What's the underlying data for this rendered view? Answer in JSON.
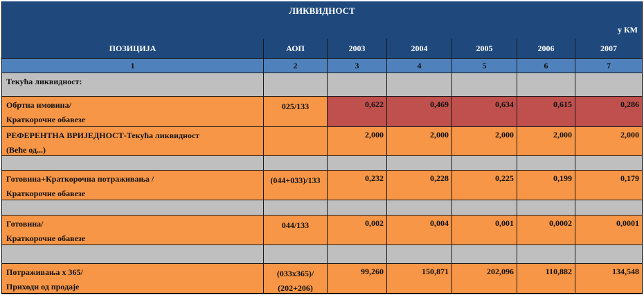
{
  "title": "ЛИКВИДНОСТ",
  "unit": "у КМ",
  "header": [
    "ПОЗИЦИЈА",
    "АОП",
    "2003",
    "2004",
    "2005",
    "2006",
    "2007"
  ],
  "col_numbers": [
    "1",
    "2",
    "3",
    "4",
    "5",
    "6",
    "7"
  ],
  "rows": [
    {
      "label1": "Текућа ликвидност:",
      "label2": "",
      "aop": "",
      "values": [
        "",
        "",
        "",
        "",
        ""
      ]
    },
    {
      "label1": "Обртна имовина/",
      "label2": "Краткорочне обавезе",
      "aop": "025/133",
      "values": [
        "0,622",
        "0,469",
        "0,634",
        "0,615",
        "0,286"
      ]
    },
    {
      "label1": "РЕФЕРЕНТНА ВРИЈЕДНОСТ-Текућа  ликвидност",
      "label2": "(Веће од...)",
      "aop": "",
      "values": [
        "2,000",
        "2,000",
        "2,000",
        "2,000",
        "2,000"
      ]
    },
    {
      "label1": "",
      "label2": "",
      "aop": "",
      "values": [
        "",
        "",
        "",
        "",
        ""
      ]
    },
    {
      "label1": "Готовина+Краткорочна потраживања /",
      "label2": "Краткорочне обавезе",
      "aop": "(044+033)/133",
      "values": [
        "0,232",
        "0,228",
        "0,225",
        "0,199",
        "0,179"
      ]
    },
    {
      "label1": "",
      "label2": "",
      "aop": "",
      "values": [
        "",
        "",
        "",
        "",
        ""
      ]
    },
    {
      "label1": "Готовина/",
      "label2": "Краткорочне обавезе",
      "aop": "044/133",
      "values": [
        "0,002",
        "0,004",
        "0,001",
        "0,0002",
        "0,0001"
      ]
    },
    {
      "label1": "",
      "label2": "",
      "aop": "",
      "values": [
        "",
        "",
        "",
        "",
        ""
      ]
    },
    {
      "label1": "Потраживања x 365/",
      "label2": "Приходи од продаје",
      "aop": "(033x365)/",
      "aop2": "(202+206)",
      "values": [
        "99,260",
        "150,871",
        "202,096",
        "110,882",
        "134,548"
      ]
    }
  ],
  "colors": {
    "header": "#1f497d",
    "subheader": "#4f81bd",
    "grey": "#bfbfbf",
    "orange": "#f79646",
    "highlight": "#c0504d"
  }
}
